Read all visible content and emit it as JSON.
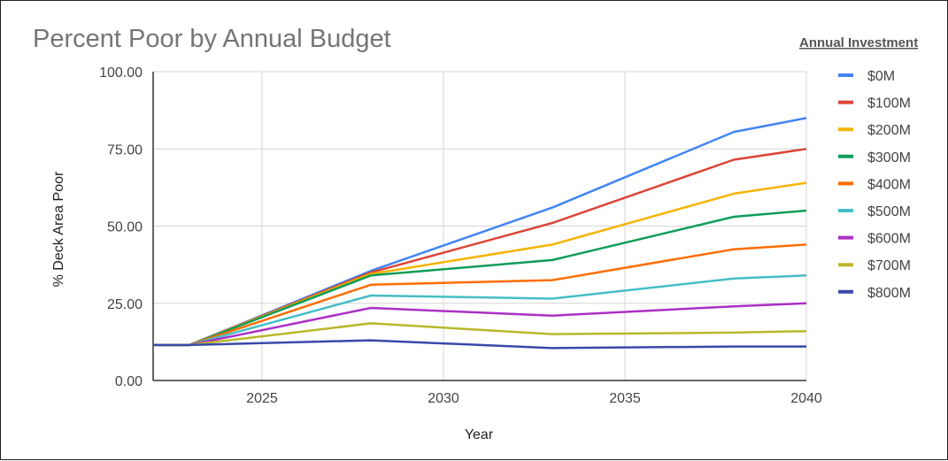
{
  "chart_data": {
    "type": "line",
    "title": "Percent Poor by Annual Budget",
    "legend_title": "Annual Investment",
    "xlabel": "Year",
    "ylabel": "% Deck Area Poor",
    "xlim": [
      2022,
      2040
    ],
    "ylim": [
      0,
      100
    ],
    "x_ticks": [
      "2025",
      "2030",
      "2035",
      "2040"
    ],
    "y_ticks": [
      "0.00",
      "25.00",
      "50.00",
      "75.00",
      "100.00"
    ],
    "legend_position": "right",
    "grid": true,
    "x": [
      2022,
      2023,
      2028,
      2033,
      2038,
      2040
    ],
    "series": [
      {
        "name": "$0M",
        "color": "#4285F4",
        "values": [
          11.5,
          11.5,
          35.5,
          56,
          80.5,
          85
        ]
      },
      {
        "name": "$100M",
        "color": "#DB4437",
        "values": [
          11.5,
          11.5,
          35,
          51,
          71.5,
          75
        ]
      },
      {
        "name": "$200M",
        "color": "#F4B400",
        "values": [
          11.5,
          11.5,
          34.5,
          44,
          60.5,
          64
        ]
      },
      {
        "name": "$300M",
        "color": "#0F9D58",
        "values": [
          11.5,
          11.5,
          34,
          39,
          53,
          55
        ]
      },
      {
        "name": "$400M",
        "color": "#FF6D00",
        "values": [
          11.5,
          11.5,
          31,
          32.5,
          42.5,
          44
        ]
      },
      {
        "name": "$500M",
        "color": "#46BDC6",
        "values": [
          11.5,
          11.5,
          27.5,
          26.5,
          33,
          34
        ]
      },
      {
        "name": "$600M",
        "color": "#AB30C4",
        "values": [
          11.5,
          11.5,
          23.5,
          21,
          24,
          25
        ]
      },
      {
        "name": "$700M",
        "color": "#B8B82A",
        "values": [
          11.5,
          11.5,
          18.5,
          15,
          15.5,
          16
        ]
      },
      {
        "name": "$800M",
        "color": "#3949AB",
        "values": [
          11.5,
          11.5,
          13,
          10.5,
          11,
          11
        ]
      }
    ]
  }
}
